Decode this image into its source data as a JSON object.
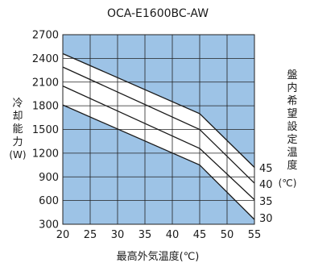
{
  "chart_data": {
    "type": "line",
    "title": "OCA-E1600BC-AW",
    "xlabel": "最高外気温度(℃)",
    "ylabel_chars": [
      "冷",
      "却",
      "能",
      "力"
    ],
    "ylabel_unit": "(W)",
    "right_label_chars": [
      "盤",
      "内",
      "希",
      "望",
      "設",
      "定",
      "温",
      "度"
    ],
    "right_label_unit": "(℃)",
    "xlim": [
      20,
      55
    ],
    "ylim": [
      300,
      2700
    ],
    "x_ticks": [
      20,
      25,
      30,
      35,
      40,
      45,
      50,
      55
    ],
    "y_ticks": [
      300,
      600,
      900,
      1200,
      1500,
      1800,
      2100,
      2400,
      2700
    ],
    "grid": true,
    "plot_bg_color": "#9dc3e6",
    "band_color": "#ffffff",
    "line_color": "#1a1a1a",
    "series": [
      {
        "name": "45",
        "x": [
          20,
          45,
          55
        ],
        "y": [
          2460,
          1700,
          1020
        ]
      },
      {
        "name": "40",
        "x": [
          20,
          45,
          55
        ],
        "y": [
          2290,
          1500,
          820
        ]
      },
      {
        "name": "35",
        "x": [
          20,
          45,
          55
        ],
        "y": [
          2050,
          1260,
          610
        ]
      },
      {
        "name": "30",
        "x": [
          20,
          45,
          55
        ],
        "y": [
          1810,
          1050,
          360
        ]
      }
    ]
  }
}
